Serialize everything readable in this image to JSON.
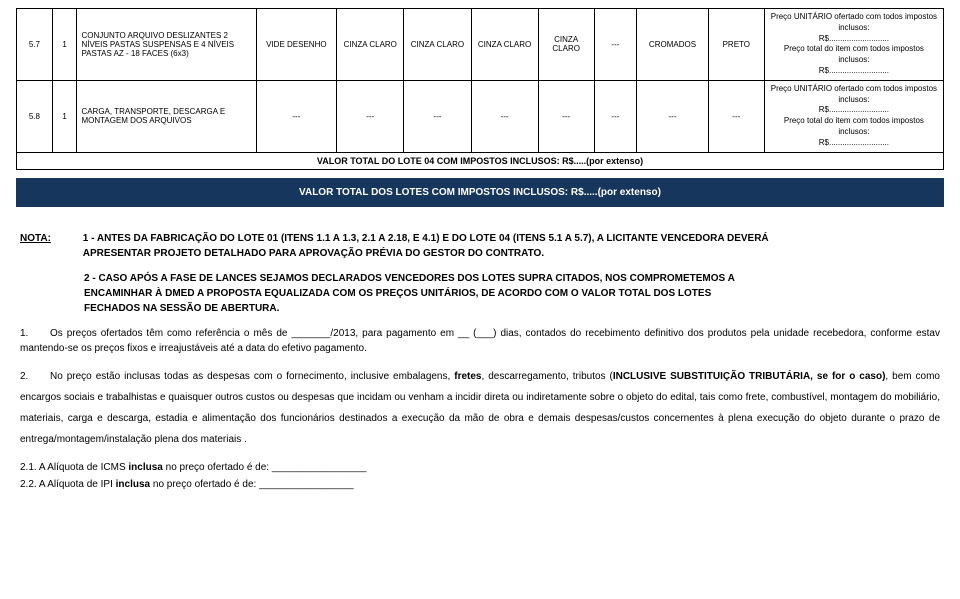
{
  "table": {
    "rows": [
      {
        "idx": "5.7",
        "qty": "1",
        "desc": "CONJUNTO ARQUIVO DESLIZANTES 2 NÍVEIS PASTAS SUSPENSAS E 4 NÍVEIS PASTAS AZ - 18 FACES (6x3)",
        "c3": "VIDE DESENHO",
        "c4": "CINZA CLARO",
        "c5": "CINZA CLARO",
        "c6": "CINZA CLARO",
        "c7": "CINZA CLARO",
        "c8": "---",
        "c9": "CROMADOS",
        "c10": "PRETO",
        "price_u_label": "Preço UNITÁRIO ofertado com todos impostos inclusos:",
        "price_u_val": "R$...........................",
        "price_t_label": "Preço total do item com todos impostos inclusos:",
        "price_t_val": "R$..........................."
      },
      {
        "idx": "5.8",
        "qty": "1",
        "desc": "CARGA, TRANSPORTE, DESCARGA E MONTAGEM DOS ARQUIVOS",
        "c3": "---",
        "c4": "---",
        "c5": "---",
        "c6": "---",
        "c7": "---",
        "c8": "---",
        "c9": "---",
        "c10": "---",
        "price_u_label": "Preço UNITÁRIO ofertado com todos impostos inclusos:",
        "price_u_val": "R$...........................",
        "price_t_label": "Preço total do item com todos impostos inclusos:",
        "price_t_val": "R$..........................."
      }
    ],
    "total_row": "VALOR TOTAL DO LOTE 04 COM IMPOSTOS INCLUSOS: R$.....(por extenso)"
  },
  "banner": "VALOR TOTAL DOS LOTES COM IMPOSTOS INCLUSOS: R$.....(por extenso)",
  "notes": {
    "label": "NOTA:",
    "n1_a": "1 - ANTES DA FABRICAÇÃO DO LOTE 01 (ITENS 1.1 A 1.3, 2.1 A 2.18, E 4.1) E DO LOTE 04 (ITENS 5.1 A 5.7), A LICITANTE VENCEDORA DEVERÁ",
    "n1_b": "APRESENTAR PROJETO DETALHADO PARA APROVAÇÃO PRÉVIA DO GESTOR DO CONTRATO.",
    "n2_a": "2 - CASO APÓS A FASE DE LANCES SEJAMOS DECLARADOS VENCEDORES DOS LOTES SUPRA CITADOS, NOS COMPROMETEMOS A",
    "n2_b": "ENCAMINHAR À DMED A PROPOSTA EQUALIZADA COM OS PREÇOS UNITÁRIOS, DE ACORDO COM O VALOR TOTAL DOS LOTES",
    "n2_c": "FECHADOS NA SESSÃO DE ABERTURA.",
    "p1_num": "1.",
    "p1": "Os preços ofertados têm como referência o mês de _______/2013, para pagamento em __ (___) dias, contados do recebimento definitivo dos produtos pela unidade recebedora, conforme estav mantendo-se os preços fixos e irreajustáveis até a data do efetivo pagamento.",
    "p2_num": "2.",
    "p2_a": "No preço estão inclusas todas as despesas com o fornecimento, inclusive embalagens, ",
    "p2_b": "fretes",
    "p2_c": ", descarregamento, tributos (",
    "p2_d": "INCLUSIVE SUBSTITUIÇÃO TRIBUTÁRIA, se for o caso)",
    "p2_e": ",  bem como encargos sociais e trabalhistas e quaisquer outros custos ou despesas que incidam ou venham a incidir direta ou indiretamente sobre o objeto do edital, tais como  frete, combustível, montagem do mobiliário, materiais, carga e descarga,  estadia e alimentação dos funcionários destinados a execução da mão de obra e demais despesas/custos concernentes à plena execução do objeto durante o prazo de entrega/montagem/instalação plena dos materiais .",
    "p21": "2.1. A Alíquota de ICMS ",
    "p21b": "inclusa",
    "p21c": " no preço ofertado é de: _________________",
    "p22": "2.2. A Alíquota de IPI ",
    "p22b": "inclusa",
    "p22c": " no preço ofertado é de: _________________"
  },
  "colwidths": [
    "32",
    "22",
    "160",
    "72",
    "60",
    "60",
    "60",
    "50",
    "38",
    "64",
    "50",
    "160"
  ]
}
